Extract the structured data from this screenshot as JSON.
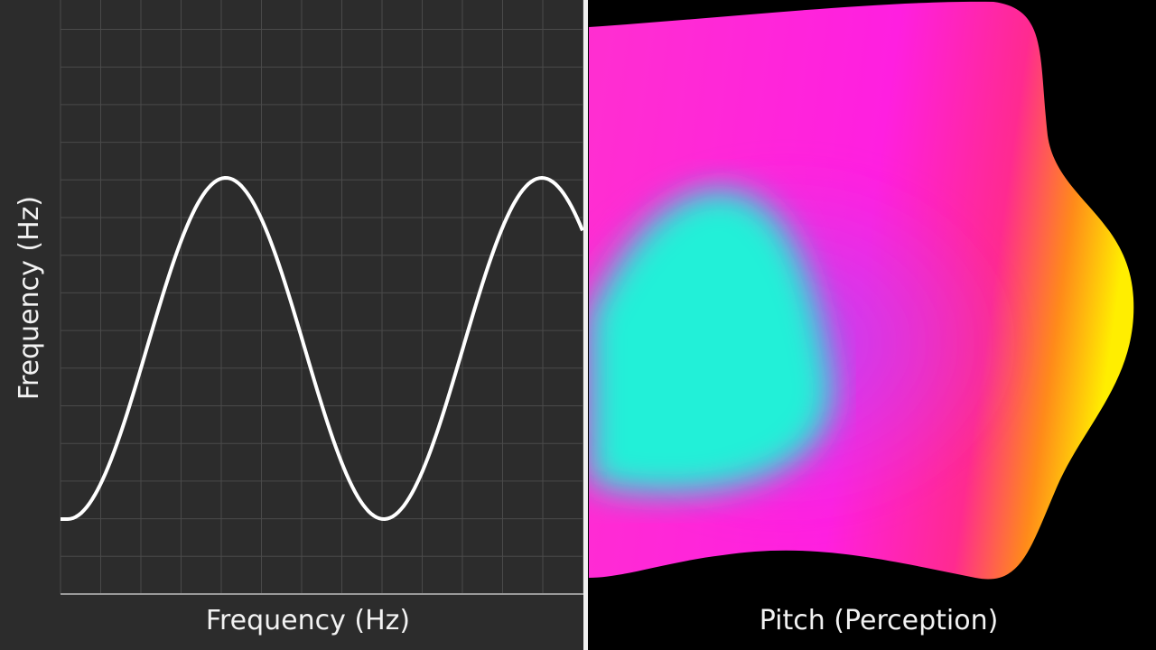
{
  "left_panel": {
    "y_label": "Frequency (Hz)",
    "x_label": "Frequency (Hz)"
  },
  "right_panel": {
    "label": "Pitch (Perception)"
  }
}
